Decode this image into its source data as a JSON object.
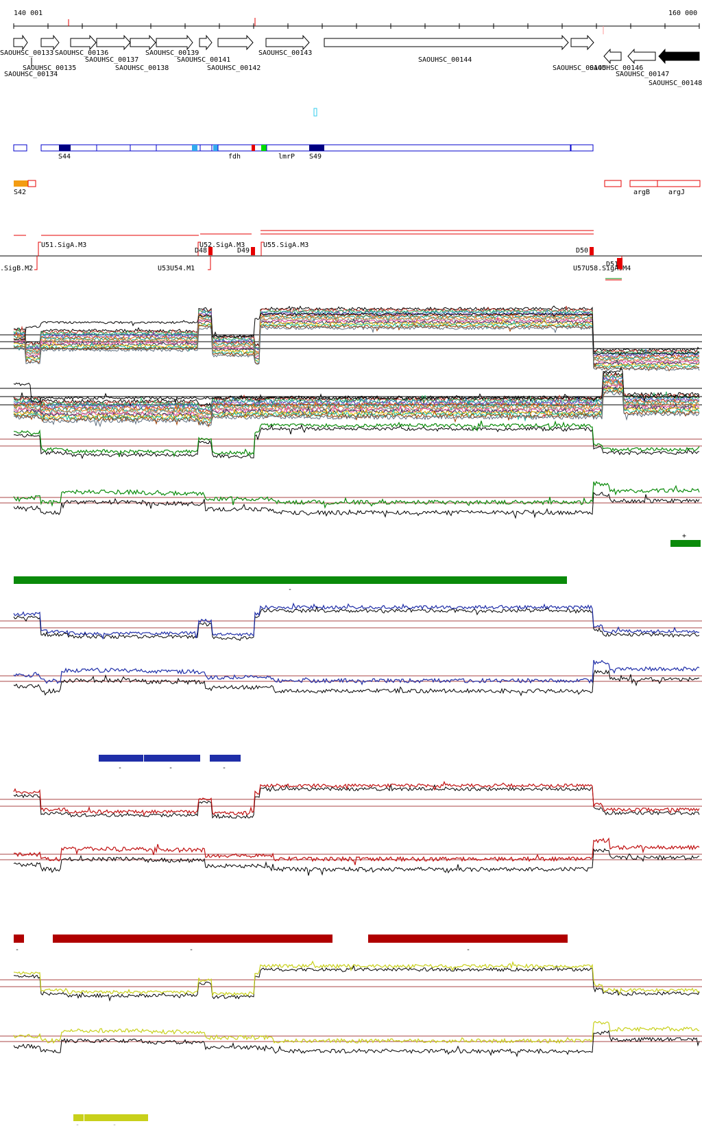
{
  "ruler": {
    "start_label": "140 001",
    "end_label": "160 000"
  },
  "genes": [
    {
      "label": "SAOUHSC_00133",
      "dir": "+",
      "fill": "#ffffff"
    },
    {
      "label": "SAOUHSC_00134",
      "dir": "-",
      "fill": "#ffffff"
    },
    {
      "label": "SAOUHSC_00135",
      "dir": "+",
      "fill": "#ffffff"
    },
    {
      "label": "SAOUHSC_00136",
      "dir": "+",
      "fill": "#ffffff"
    },
    {
      "label": "SAOUHSC_00137",
      "dir": "+",
      "fill": "#ffffff"
    },
    {
      "label": "SAOUHSC_00138",
      "dir": "+",
      "fill": "#ffffff"
    },
    {
      "label": "SAOUHSC_00139",
      "dir": "+",
      "fill": "#ffffff"
    },
    {
      "label": "SAOUHSC_00141",
      "dir": "+",
      "fill": "#ffffff"
    },
    {
      "label": "SAOUHSC_00142",
      "dir": "+",
      "fill": "#ffffff"
    },
    {
      "label": "SAOUHSC_00143",
      "dir": "+",
      "fill": "#ffffff"
    },
    {
      "label": "SAOUHSC_00144",
      "dir": "+",
      "fill": "#ffffff"
    },
    {
      "label": "SAOUHSC_00145",
      "dir": "+",
      "fill": "#ffffff"
    },
    {
      "label": "SAOUHSC_00146",
      "dir": "-",
      "fill": "#ffffff"
    },
    {
      "label": "SAOUHSC_00147",
      "dir": "-",
      "fill": "#ffffff"
    },
    {
      "label": "SAOUHSC_00148",
      "dir": "-",
      "fill": "#000000"
    }
  ],
  "blue_track_labels": [
    "S44",
    "fdh",
    "lmrP",
    "S49"
  ],
  "orange_track_labels": [
    "S42",
    "argB",
    "argJ"
  ],
  "regulatory_labels_top": [
    "U51.SigA.M3",
    "U52.SigA.M3",
    "U55.SigA.M3",
    "D48",
    "D49",
    "D50",
    "D51"
  ],
  "regulatory_labels_bottom": [
    ".SigB.M2",
    "U53U54.M1",
    "U57U58.SigA.M4"
  ],
  "strand_labels": {
    "plus": "+",
    "minus": "-"
  },
  "colors": {
    "gene_stroke": "#000000",
    "blue_outline": "#0000cc",
    "blue_dark": "#000080",
    "cyan": "#33aaee",
    "orange": "#f39c12",
    "red": "#e60000",
    "green_marker": "#00dd00",
    "green": "#0a8a0a",
    "navy": "#1f2ea8",
    "darkred": "#b00000",
    "yellow": "#c8d01a",
    "baseline": "#aa4444"
  }
}
